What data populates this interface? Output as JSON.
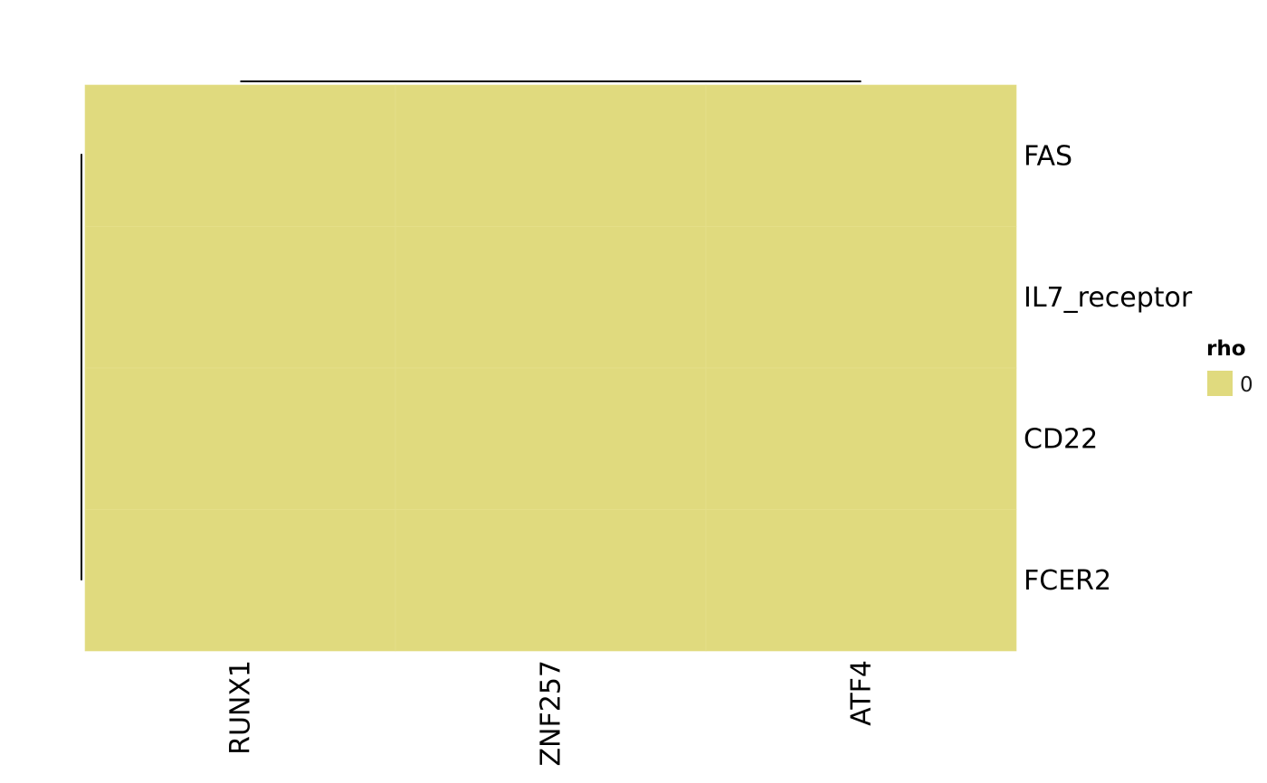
{
  "chart_data": {
    "type": "heatmap",
    "rows": [
      "FAS",
      "IL7_receptor",
      "CD22",
      "FCER2"
    ],
    "columns": [
      "RUNX1",
      "ZNF257",
      "ATF4"
    ],
    "values": [
      [
        0,
        0,
        0
      ],
      [
        0,
        0,
        0
      ],
      [
        0,
        0,
        0
      ],
      [
        0,
        0,
        0
      ]
    ],
    "legend": {
      "title": "rho",
      "entries": [
        {
          "label": "0",
          "value": 0,
          "color": "#E0DA7E"
        }
      ]
    },
    "cell_color": "#E0DA7E",
    "dendrograms": {
      "rows": true,
      "columns": true
    }
  }
}
